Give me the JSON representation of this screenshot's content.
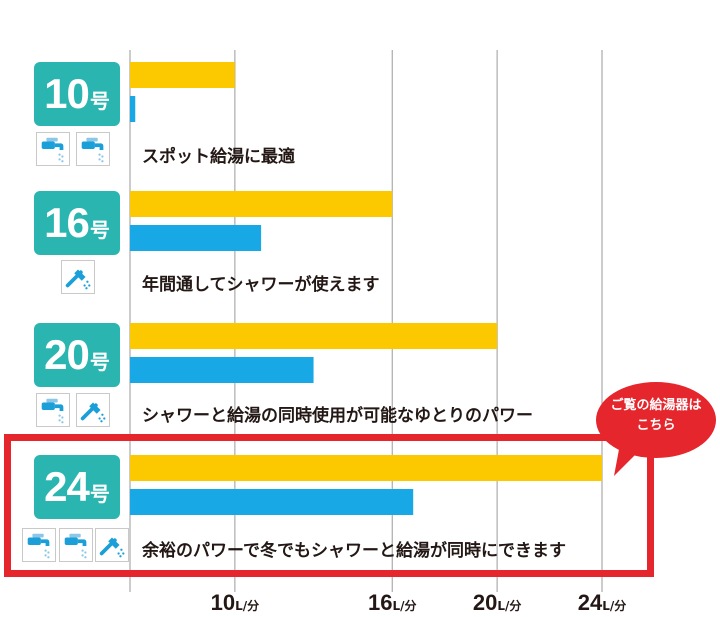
{
  "chart_data": {
    "type": "bar",
    "orientation": "horizontal",
    "categories": [
      "10号",
      "16号",
      "20号",
      "24号"
    ],
    "series": [
      {
        "name": "",
        "color": "#fcc800",
        "values": [
          10,
          16,
          20,
          24
        ]
      },
      {
        "name": "",
        "color": "#19a8e6",
        "values": [
          6.2,
          11,
          13,
          16.8
        ]
      }
    ],
    "x_ticks": [
      10,
      16,
      20,
      24
    ],
    "x_unit": "L/分",
    "xlim": [
      6,
      24
    ],
    "grid": true,
    "annotations": [
      "スポット給湯に最適",
      "年間通してシャワーが使えます",
      "シャワーと給湯の同時使用が可能なゆとりのパワー",
      "余裕のパワーで冬でもシャワーと給湯が同時にできます"
    ]
  },
  "rows": [
    {
      "num": "10",
      "unit": "号",
      "desc": "スポット給湯に最適",
      "icons": [
        "faucet-icon",
        "faucet-icon"
      ]
    },
    {
      "num": "16",
      "unit": "号",
      "desc": "年間通してシャワーが使えます",
      "icons": [
        "shower-icon"
      ]
    },
    {
      "num": "20",
      "unit": "号",
      "desc": "シャワーと給湯の同時使用が可能なゆとりのパワー",
      "icons": [
        "faucet-icon",
        "shower-icon"
      ]
    },
    {
      "num": "24",
      "unit": "号",
      "desc": "余裕のパワーで冬でもシャワーと給湯が同時にできます",
      "icons": [
        "faucet-icon",
        "faucet-icon",
        "shower-icon"
      ]
    }
  ],
  "callout": {
    "line1": "ご覧の給湯器は",
    "line2": "こちら",
    "color": "#e6262d"
  },
  "colors": {
    "badge": "#2ab5b0",
    "highlight": "#e6262d",
    "grid": "#9a9a9a",
    "icon_blue": "#1a9fd8",
    "icon_light": "#8cc7e8"
  }
}
